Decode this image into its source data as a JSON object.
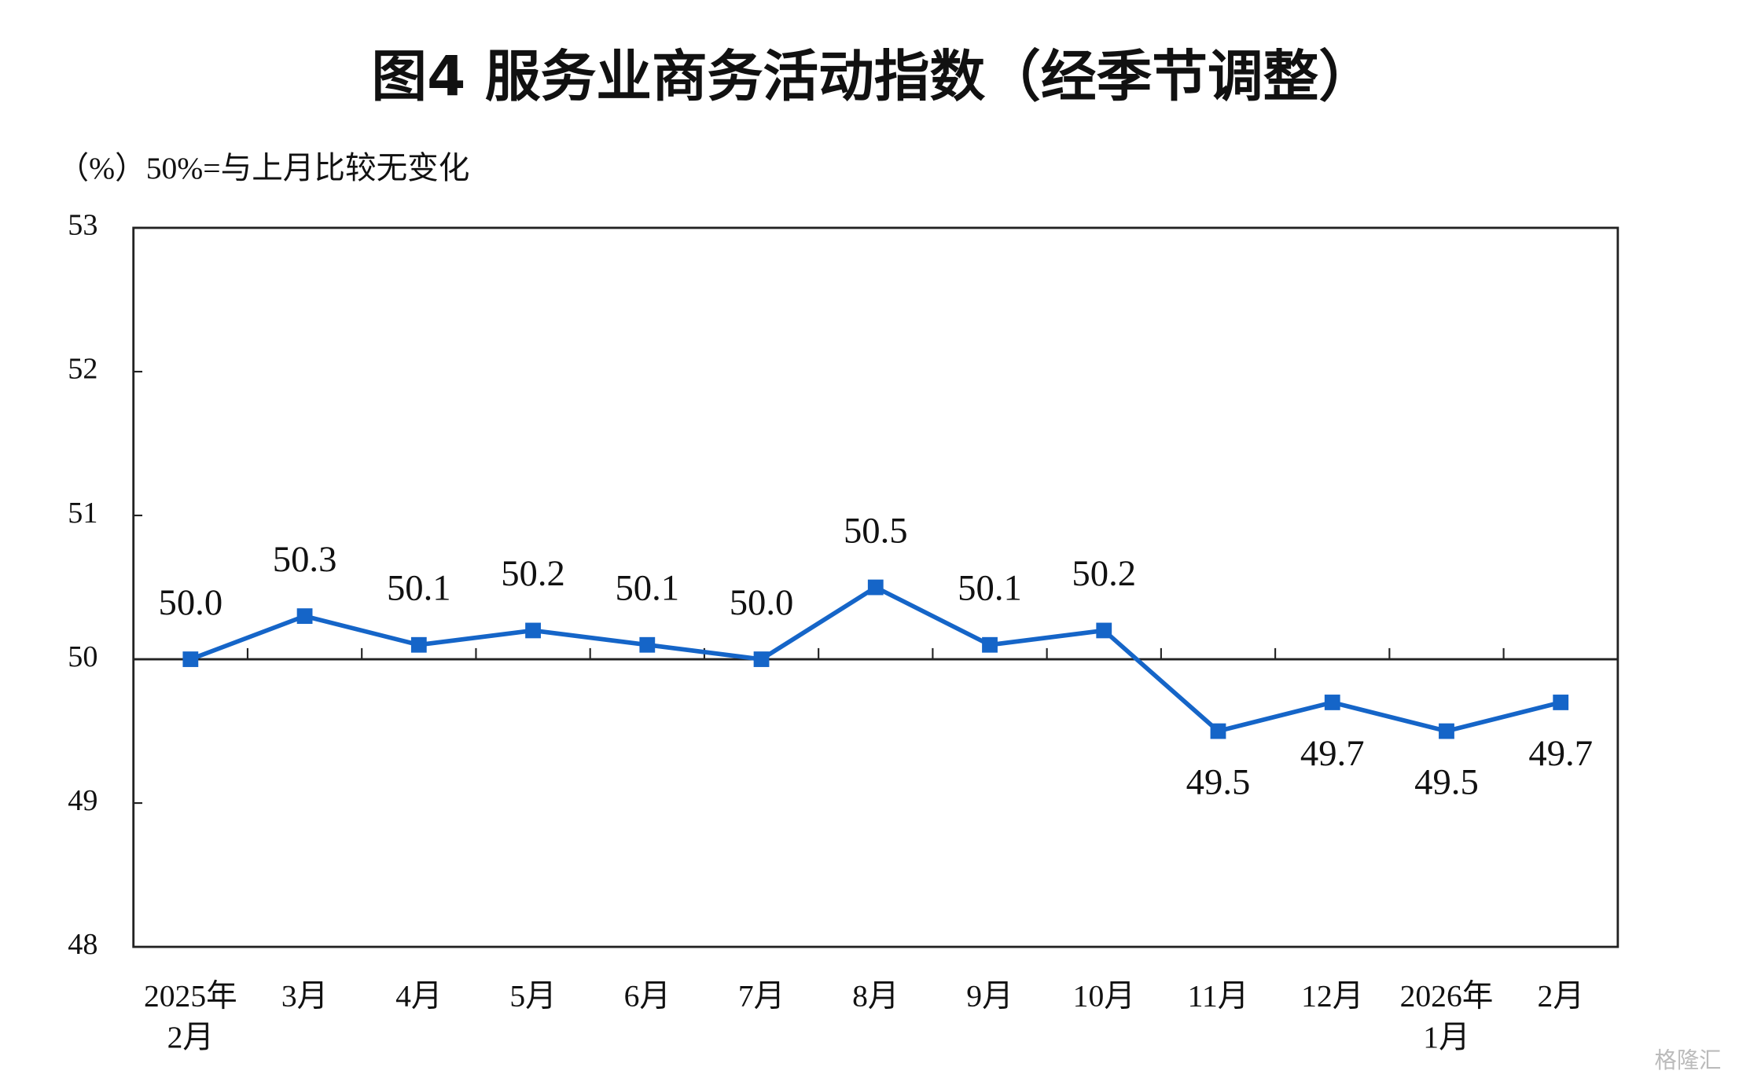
{
  "chart_data": {
    "type": "line",
    "title": "图4  服务业商务活动指数（经季节调整）",
    "y_label": "（%）50%=与上月比较无变化",
    "categories": [
      [
        "2025年",
        "2月"
      ],
      [
        "3月"
      ],
      [
        "4月"
      ],
      [
        "5月"
      ],
      [
        "6月"
      ],
      [
        "7月"
      ],
      [
        "8月"
      ],
      [
        "9月"
      ],
      [
        "10月"
      ],
      [
        "11月"
      ],
      [
        "12月"
      ],
      [
        "2026年",
        "1月"
      ],
      [
        "2月"
      ]
    ],
    "series": [
      {
        "color": "#1565c8",
        "values": [
          50.0,
          50.3,
          50.1,
          50.2,
          50.1,
          50.0,
          50.5,
          50.1,
          50.2,
          49.5,
          49.7,
          49.5,
          49.7
        ],
        "value_labels": [
          "50.0",
          "50.3",
          "50.1",
          "50.2",
          "50.1",
          "50.0",
          "50.5",
          "50.1",
          "50.2",
          "49.5",
          "49.7",
          "49.5",
          "49.7"
        ]
      }
    ],
    "ylim": [
      48,
      53
    ],
    "yticks": [
      48,
      49,
      50,
      51,
      52,
      53
    ],
    "reference_line": 50,
    "grid": false,
    "watermark": "格隆汇"
  }
}
